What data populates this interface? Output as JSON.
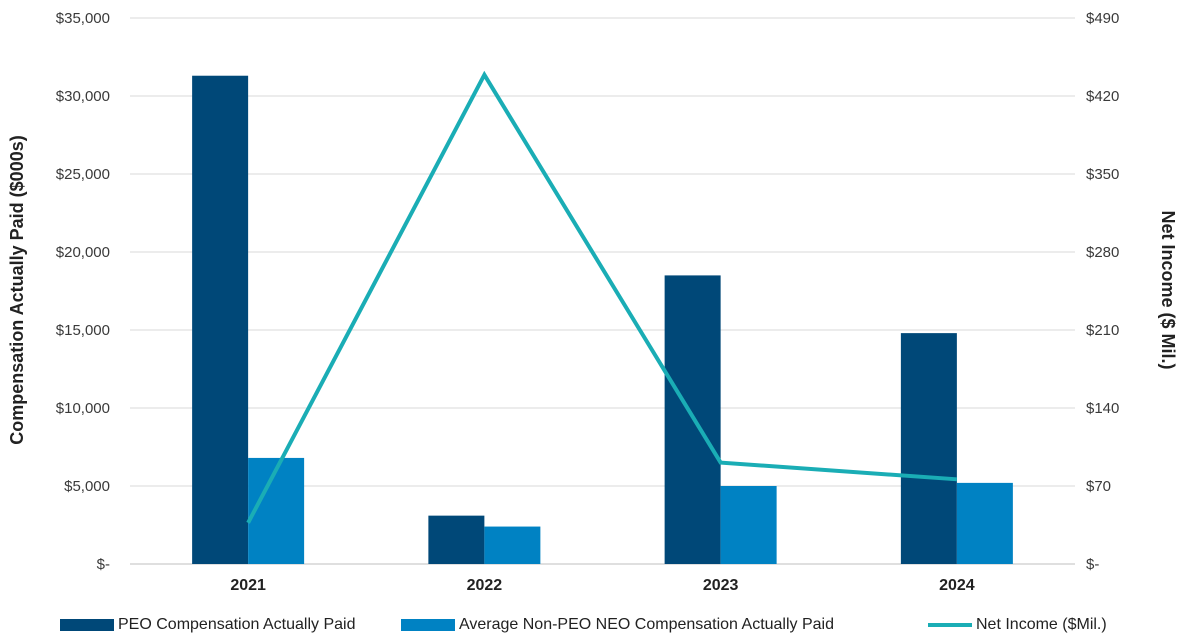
{
  "chart_data": {
    "type": "bar",
    "categories": [
      "2021",
      "2022",
      "2023",
      "2024"
    ],
    "series": [
      {
        "name": "PEO Compensation Actually Paid",
        "type": "bar",
        "axis": "left",
        "color": "#004878",
        "values": [
          31300,
          3100,
          18500,
          14800
        ]
      },
      {
        "name": "Average Non-PEO NEO Compensation Actually Paid",
        "type": "bar",
        "axis": "left",
        "color": "#0082c3",
        "values": [
          6800,
          2400,
          5000,
          5200
        ]
      },
      {
        "name": "Net Income ($Mil.)",
        "type": "line",
        "axis": "right",
        "color": "#1aadb5",
        "values": [
          37,
          439,
          91,
          76
        ]
      }
    ],
    "ylabel": "Compensation Actually Paid ($000s)",
    "y2label": "Net Income ($ Mil.)",
    "ylim": [
      0,
      35000
    ],
    "y2lim": [
      0,
      490
    ],
    "yticks": [
      "$-",
      "$5,000",
      "$10,000",
      "$15,000",
      "$20,000",
      "$25,000",
      "$30,000",
      "$35,000"
    ],
    "y2ticks": [
      "$-",
      "$70",
      "$140",
      "$210",
      "$280",
      "$350",
      "$420",
      "$490"
    ],
    "grid": true,
    "legend_position": "bottom"
  }
}
